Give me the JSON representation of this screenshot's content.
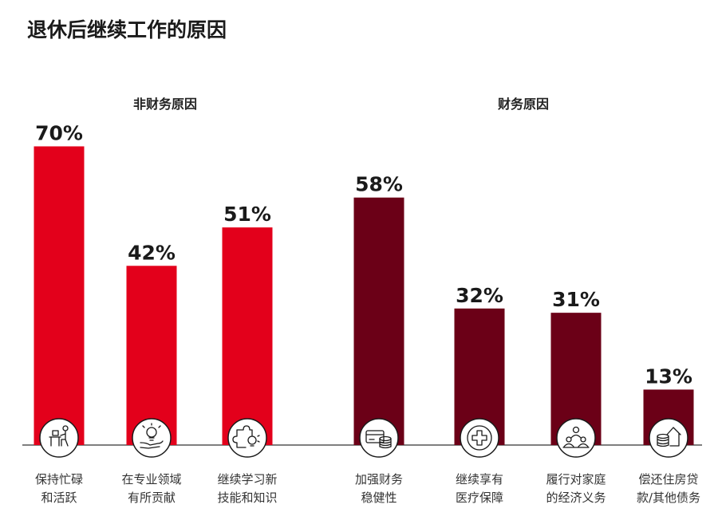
{
  "chart_data": {
    "type": "bar",
    "title": "退休后继续工作的原因",
    "unit": "%",
    "ylim": [
      0,
      100
    ],
    "grid": false,
    "colors": {
      "non_financial": "#E3001B",
      "financial": "#6B0017"
    },
    "groups": [
      {
        "name": "非财务原因",
        "color_key": "non_financial",
        "items": [
          {
            "category": [
              "保持忙碌",
              "和活跃"
            ],
            "value": 70,
            "icon": "person-at-desk-icon"
          },
          {
            "category": [
              "在专业领域",
              "有所贡献"
            ],
            "value": 42,
            "icon": "lightbulb-hand-icon"
          },
          {
            "category": [
              "继续学习新",
              "技能和知识"
            ],
            "value": 51,
            "icon": "puzzle-lightbulb-icon"
          }
        ]
      },
      {
        "name": "财务原因",
        "color_key": "financial",
        "items": [
          {
            "category": [
              "加强财务",
              "稳健性"
            ],
            "value": 58,
            "icon": "card-coins-icon"
          },
          {
            "category": [
              "继续享有",
              "医疗保障"
            ],
            "value": 32,
            "icon": "medical-cross-icon"
          },
          {
            "category": [
              "履行对家庭",
              "的经济义务"
            ],
            "value": 31,
            "icon": "family-icon"
          },
          {
            "category": [
              "偿还住房贷",
              "款/其他债务"
            ],
            "value": 13,
            "icon": "house-coins-icon"
          }
        ]
      }
    ]
  }
}
